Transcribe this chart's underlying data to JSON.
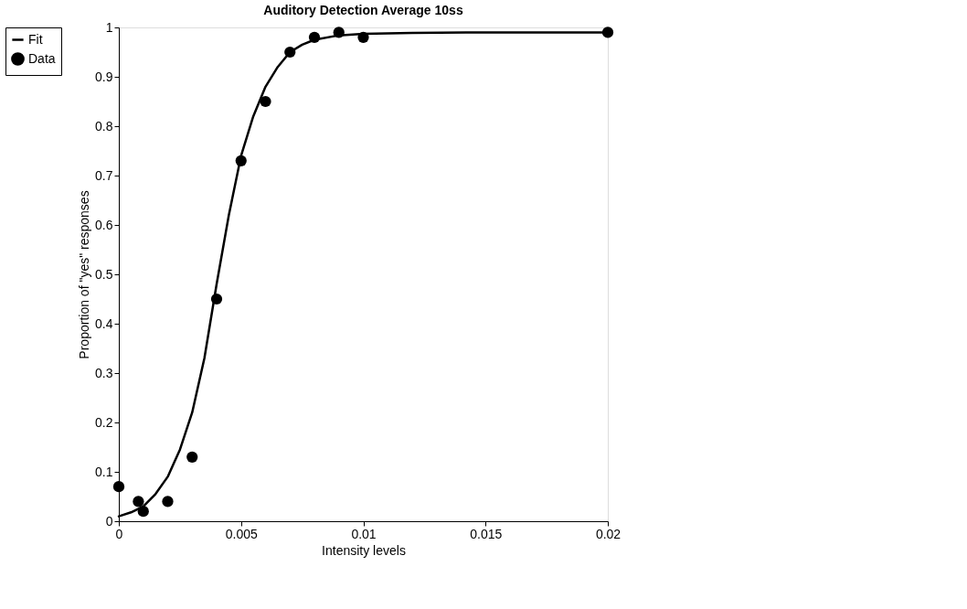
{
  "chart_data": {
    "type": "scatter",
    "title": "Auditory Detection Average 10ss",
    "xlabel": "Intensity levels",
    "ylabel": "Proportion of \"yes\" responses",
    "xlim": [
      0,
      0.02
    ],
    "xticks": [
      0,
      0.005,
      0.01,
      0.015,
      0.02
    ],
    "ylim": [
      0,
      1
    ],
    "yticks": [
      0,
      0.1,
      0.2,
      0.3,
      0.4,
      0.5,
      0.6,
      0.7,
      0.8,
      0.9,
      1
    ],
    "grid": false,
    "legend": "top left",
    "series": [
      {
        "name": "Fit",
        "type": "line",
        "color": "#000000",
        "line_style": "solid",
        "marker": "none",
        "x": [
          0,
          0.0005,
          0.001,
          0.0015,
          0.002,
          0.0025,
          0.003,
          0.0035,
          0.004,
          0.0045,
          0.005,
          0.0055,
          0.006,
          0.0065,
          0.007,
          0.0075,
          0.008,
          0.009,
          0.01,
          0.012,
          0.015,
          0.02
        ],
        "values": [
          0.01,
          0.018,
          0.03,
          0.055,
          0.09,
          0.145,
          0.22,
          0.33,
          0.48,
          0.62,
          0.74,
          0.82,
          0.88,
          0.92,
          0.95,
          0.965,
          0.975,
          0.984,
          0.987,
          0.989,
          0.99,
          0.99
        ]
      },
      {
        "name": "Data",
        "color": "#000000",
        "marker": "circle",
        "x": [
          0,
          0.0008,
          0.001,
          0.002,
          0.003,
          0.004,
          0.005,
          0.006,
          0.007,
          0.008,
          0.009,
          0.01,
          0.02
        ],
        "values": [
          0.07,
          0.04,
          0.02,
          0.04,
          0.13,
          0.45,
          0.73,
          0.85,
          0.95,
          0.98,
          0.99,
          0.98,
          0.99
        ]
      }
    ]
  }
}
